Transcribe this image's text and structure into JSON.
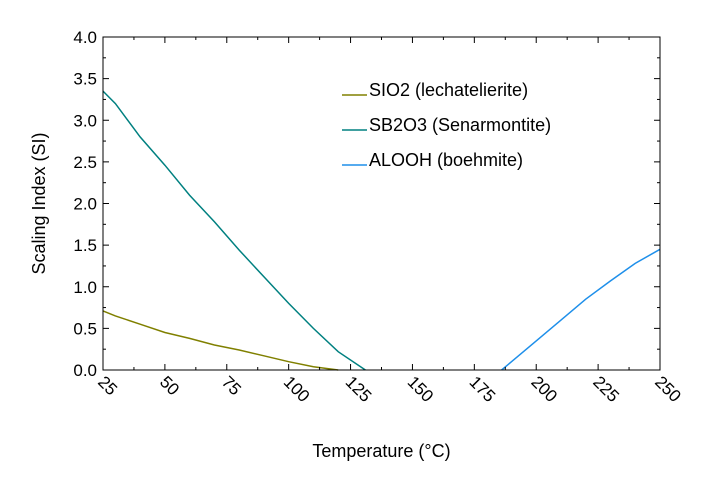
{
  "chart_data": {
    "type": "line",
    "title": "",
    "xlabel": "Temperature (°C)",
    "ylabel": "Scaling Index (SI)",
    "xlim": [
      25,
      250
    ],
    "ylim": [
      0,
      4.0
    ],
    "xticks": [
      "25",
      "50",
      "75",
      "100",
      "125",
      "150",
      "175",
      "200",
      "225",
      "250"
    ],
    "yticks": [
      "0.0",
      "0.5",
      "1.0",
      "1.5",
      "2.0",
      "2.5",
      "3.0",
      "3.5",
      "4.0"
    ],
    "grid": false,
    "legend_position": "top-right",
    "series": [
      {
        "name": "SIO2 (lechatelierite)",
        "color": "#808000",
        "x": [
          25,
          30,
          40,
          50,
          60,
          70,
          80,
          90,
          100,
          110,
          120
        ],
        "y": [
          0.71,
          0.65,
          0.55,
          0.45,
          0.38,
          0.3,
          0.24,
          0.17,
          0.1,
          0.04,
          0.0
        ]
      },
      {
        "name": "SB2O3 (Senarmontite)",
        "color": "#008080",
        "x": [
          25,
          30,
          40,
          50,
          60,
          70,
          80,
          90,
          100,
          110,
          120,
          131
        ],
        "y": [
          3.35,
          3.2,
          2.8,
          2.46,
          2.1,
          1.78,
          1.44,
          1.12,
          0.8,
          0.5,
          0.22,
          0.0
        ]
      },
      {
        "name": "ALOOH (boehmite)",
        "color": "#1E8FEA",
        "x": [
          186,
          190,
          200,
          210,
          220,
          230,
          240,
          250
        ],
        "y": [
          0.0,
          0.1,
          0.35,
          0.6,
          0.85,
          1.07,
          1.28,
          1.45
        ]
      }
    ]
  }
}
